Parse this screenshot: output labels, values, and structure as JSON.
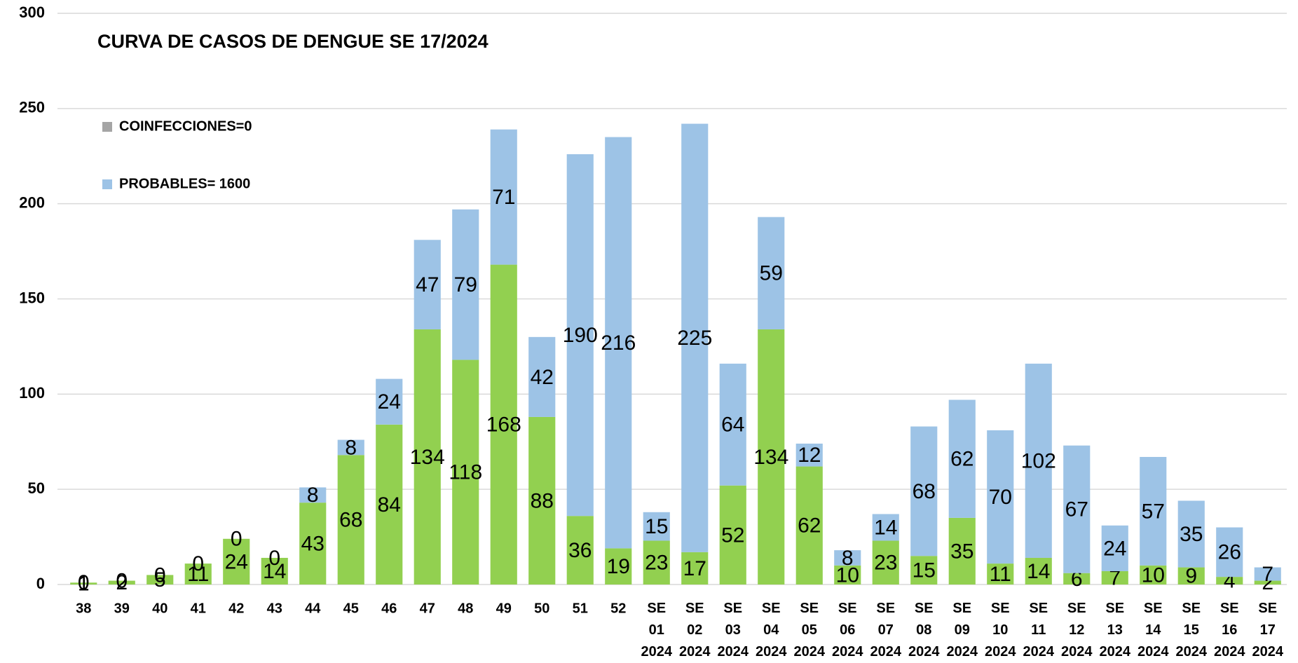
{
  "chart_data": {
    "type": "stacked_bar",
    "title": "CURVA DE CASOS DE DENGUE SE 17/2024",
    "categories": [
      "38",
      "39",
      "40",
      "41",
      "42",
      "43",
      "44",
      "45",
      "46",
      "47",
      "48",
      "49",
      "50",
      "51",
      "52",
      "SE 01 2024",
      "SE 02 2024",
      "SE 03 2024",
      "SE 04 2024",
      "SE 05 2024",
      "SE 06 2024",
      "SE 07 2024",
      "SE 08 2024",
      "SE 09 2024",
      "SE 10 2024",
      "SE 11 2024",
      "SE 12 2024",
      "SE 13 2024",
      "SE 14 2024",
      "SE 15 2024",
      "SE 16 2024",
      "SE 17 2024"
    ],
    "series": [
      {
        "color": "#92d050",
        "values": [
          1,
          2,
          5,
          11,
          24,
          14,
          43,
          68,
          84,
          134,
          118,
          168,
          88,
          36,
          19,
          23,
          17,
          52,
          134,
          62,
          10,
          23,
          15,
          35,
          11,
          14,
          6,
          7,
          10,
          9,
          4,
          2
        ]
      },
      {
        "name": "PROBABLES= 1600",
        "color": "#9dc3e6",
        "values": [
          0,
          0,
          0,
          0,
          0,
          0,
          8,
          8,
          24,
          47,
          79,
          71,
          42,
          190,
          216,
          15,
          225,
          64,
          59,
          12,
          8,
          14,
          68,
          62,
          70,
          102,
          67,
          24,
          57,
          35,
          26,
          7
        ]
      },
      {
        "name": "COINFECCIONES=0",
        "color": "#a5a5a5"
      }
    ],
    "ylim": [
      0,
      300
    ],
    "yticks": [
      0,
      50,
      100,
      150,
      200,
      250,
      300
    ],
    "grid": true
  }
}
